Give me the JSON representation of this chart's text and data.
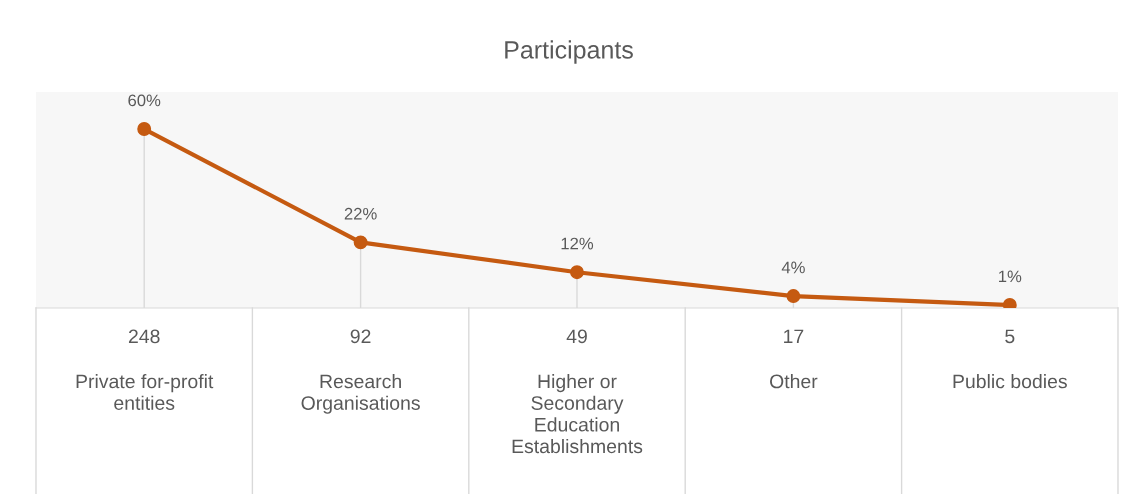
{
  "chart_data": {
    "type": "line",
    "title": "Participants",
    "categories": [
      "Private for-profit\nentities",
      "Research\nOrganisations",
      "Higher or\nSecondary\nEducation\nEstablishments",
      "Other",
      "Public bodies"
    ],
    "values": [
      60,
      22,
      12,
      4,
      1
    ],
    "value_labels": [
      "60%",
      "22%",
      "12%",
      "4%",
      "1%"
    ],
    "annotations": [
      "248",
      "92",
      "49",
      "17",
      "5"
    ],
    "color": "#c55a11",
    "marker": "circle",
    "line_style": "solid",
    "grid": "x"
  }
}
